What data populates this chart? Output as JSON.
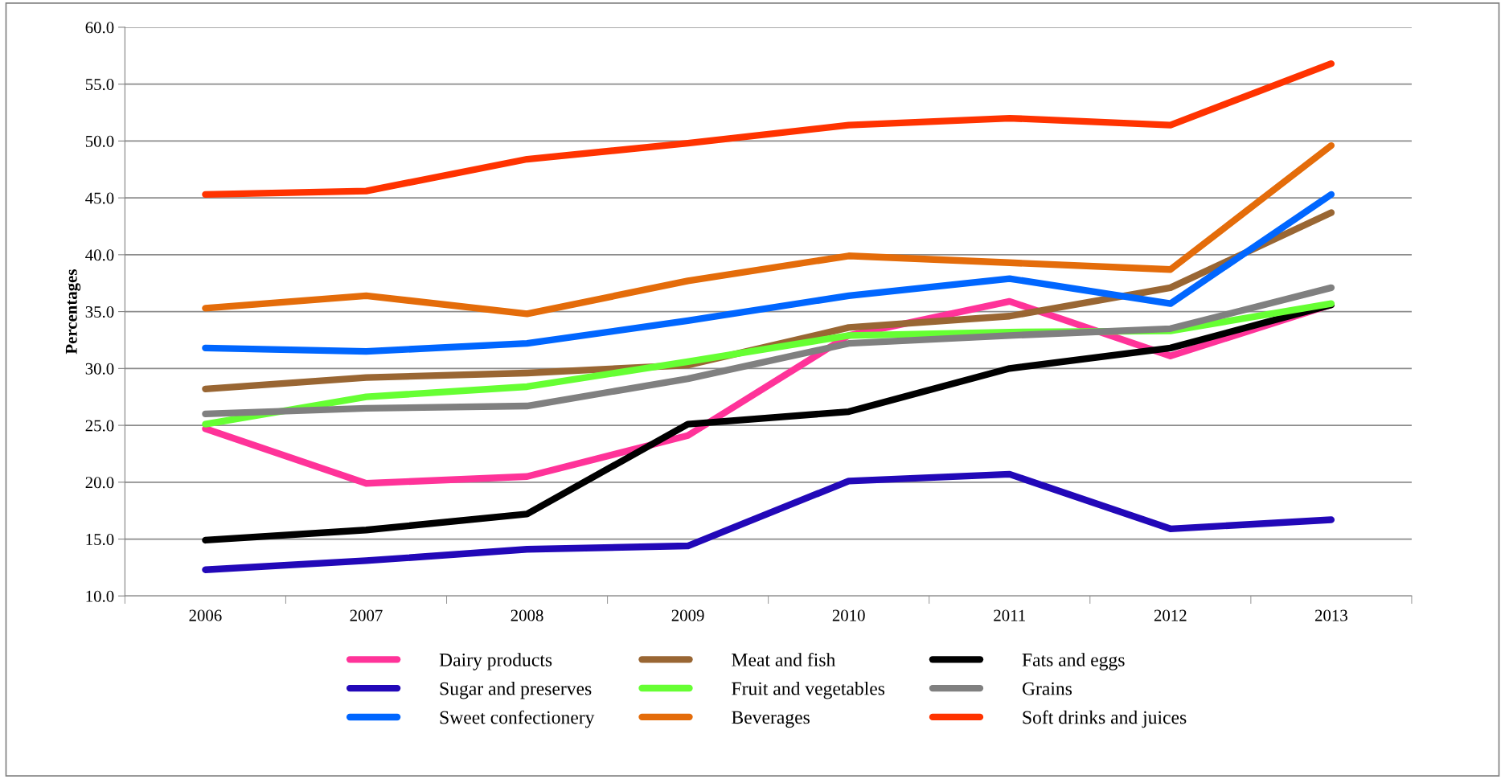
{
  "chart_data": {
    "type": "line",
    "ylabel": "Percentages",
    "categories": [
      "2006",
      "2007",
      "2008",
      "2009",
      "2010",
      "2011",
      "2012",
      "2013"
    ],
    "ylim": [
      10,
      60
    ],
    "yticks": [
      {
        "value": 10,
        "label": "10.0"
      },
      {
        "value": 15,
        "label": "15.0"
      },
      {
        "value": 20,
        "label": "20.0"
      },
      {
        "value": 25,
        "label": "25.0"
      },
      {
        "value": 30,
        "label": "30.0"
      },
      {
        "value": 35,
        "label": "35.0"
      },
      {
        "value": 40,
        "label": "40.0"
      },
      {
        "value": 45,
        "label": "45.0"
      },
      {
        "value": 50,
        "label": "50.0"
      },
      {
        "value": 55,
        "label": "55.0"
      },
      {
        "value": 60,
        "label": "60.0"
      }
    ],
    "grid": "y",
    "legend": "bottom",
    "marker": "none",
    "line_style": "solid",
    "series": [
      {
        "name": "Dairy products",
        "color": "#ff3399",
        "values": [
          24.7,
          19.9,
          20.5,
          24.1,
          32.9,
          35.9,
          31.1,
          35.6
        ]
      },
      {
        "name": "Meat and fish",
        "color": "#996633",
        "values": [
          28.2,
          29.2,
          29.6,
          30.3,
          33.6,
          34.6,
          37.1,
          43.7
        ]
      },
      {
        "name": "Fats and eggs",
        "color": "#000000",
        "values": [
          14.9,
          15.8,
          17.2,
          25.1,
          26.2,
          30.0,
          31.8,
          35.6
        ]
      },
      {
        "name": "Sugar and preserves",
        "color": "#2208b8",
        "values": [
          12.3,
          13.1,
          14.1,
          14.4,
          20.1,
          20.7,
          15.9,
          16.7
        ]
      },
      {
        "name": "Fruit and vegetables",
        "color": "#66ff33",
        "values": [
          25.1,
          27.5,
          28.4,
          30.6,
          32.9,
          33.2,
          33.3,
          35.7
        ]
      },
      {
        "name": "Grains",
        "color": "#808080",
        "values": [
          26.0,
          26.5,
          26.7,
          29.1,
          32.2,
          32.9,
          33.5,
          37.1
        ]
      },
      {
        "name": "Sweet confectionery",
        "color": "#0066ff",
        "values": [
          31.8,
          31.5,
          32.2,
          34.2,
          36.4,
          37.9,
          35.7,
          45.3
        ]
      },
      {
        "name": "Beverages",
        "color": "#e46c0a",
        "values": [
          35.3,
          36.4,
          34.8,
          37.7,
          39.9,
          39.3,
          38.7,
          49.6
        ]
      },
      {
        "name": "Soft drinks and juices",
        "color": "#ff3300",
        "values": [
          45.3,
          45.6,
          48.4,
          49.8,
          51.4,
          52.0,
          51.4,
          56.8
        ]
      }
    ]
  }
}
